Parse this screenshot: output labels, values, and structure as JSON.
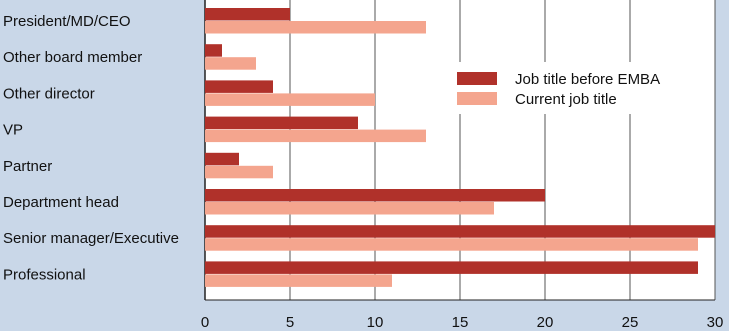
{
  "chart_data": {
    "type": "bar",
    "orientation": "horizontal",
    "categories": [
      "President/MD/CEO",
      "Other board member",
      "Other director",
      "VP",
      "Partner",
      "Department head",
      "Senior manager/Executive",
      "Professional"
    ],
    "series": [
      {
        "name": "Job title before EMBA",
        "color": "#b0312a",
        "values": [
          5,
          1,
          4,
          9,
          2,
          20,
          30,
          29
        ]
      },
      {
        "name": "Current job title",
        "color": "#f4a58e",
        "values": [
          13,
          3,
          10,
          13,
          4,
          17,
          29,
          11
        ]
      }
    ],
    "xlim": [
      0,
      30
    ],
    "xticks": [
      0,
      5,
      10,
      15,
      20,
      25,
      30
    ],
    "grid": true,
    "legend_position": "top-right",
    "title": "",
    "xlabel": "",
    "ylabel": ""
  }
}
